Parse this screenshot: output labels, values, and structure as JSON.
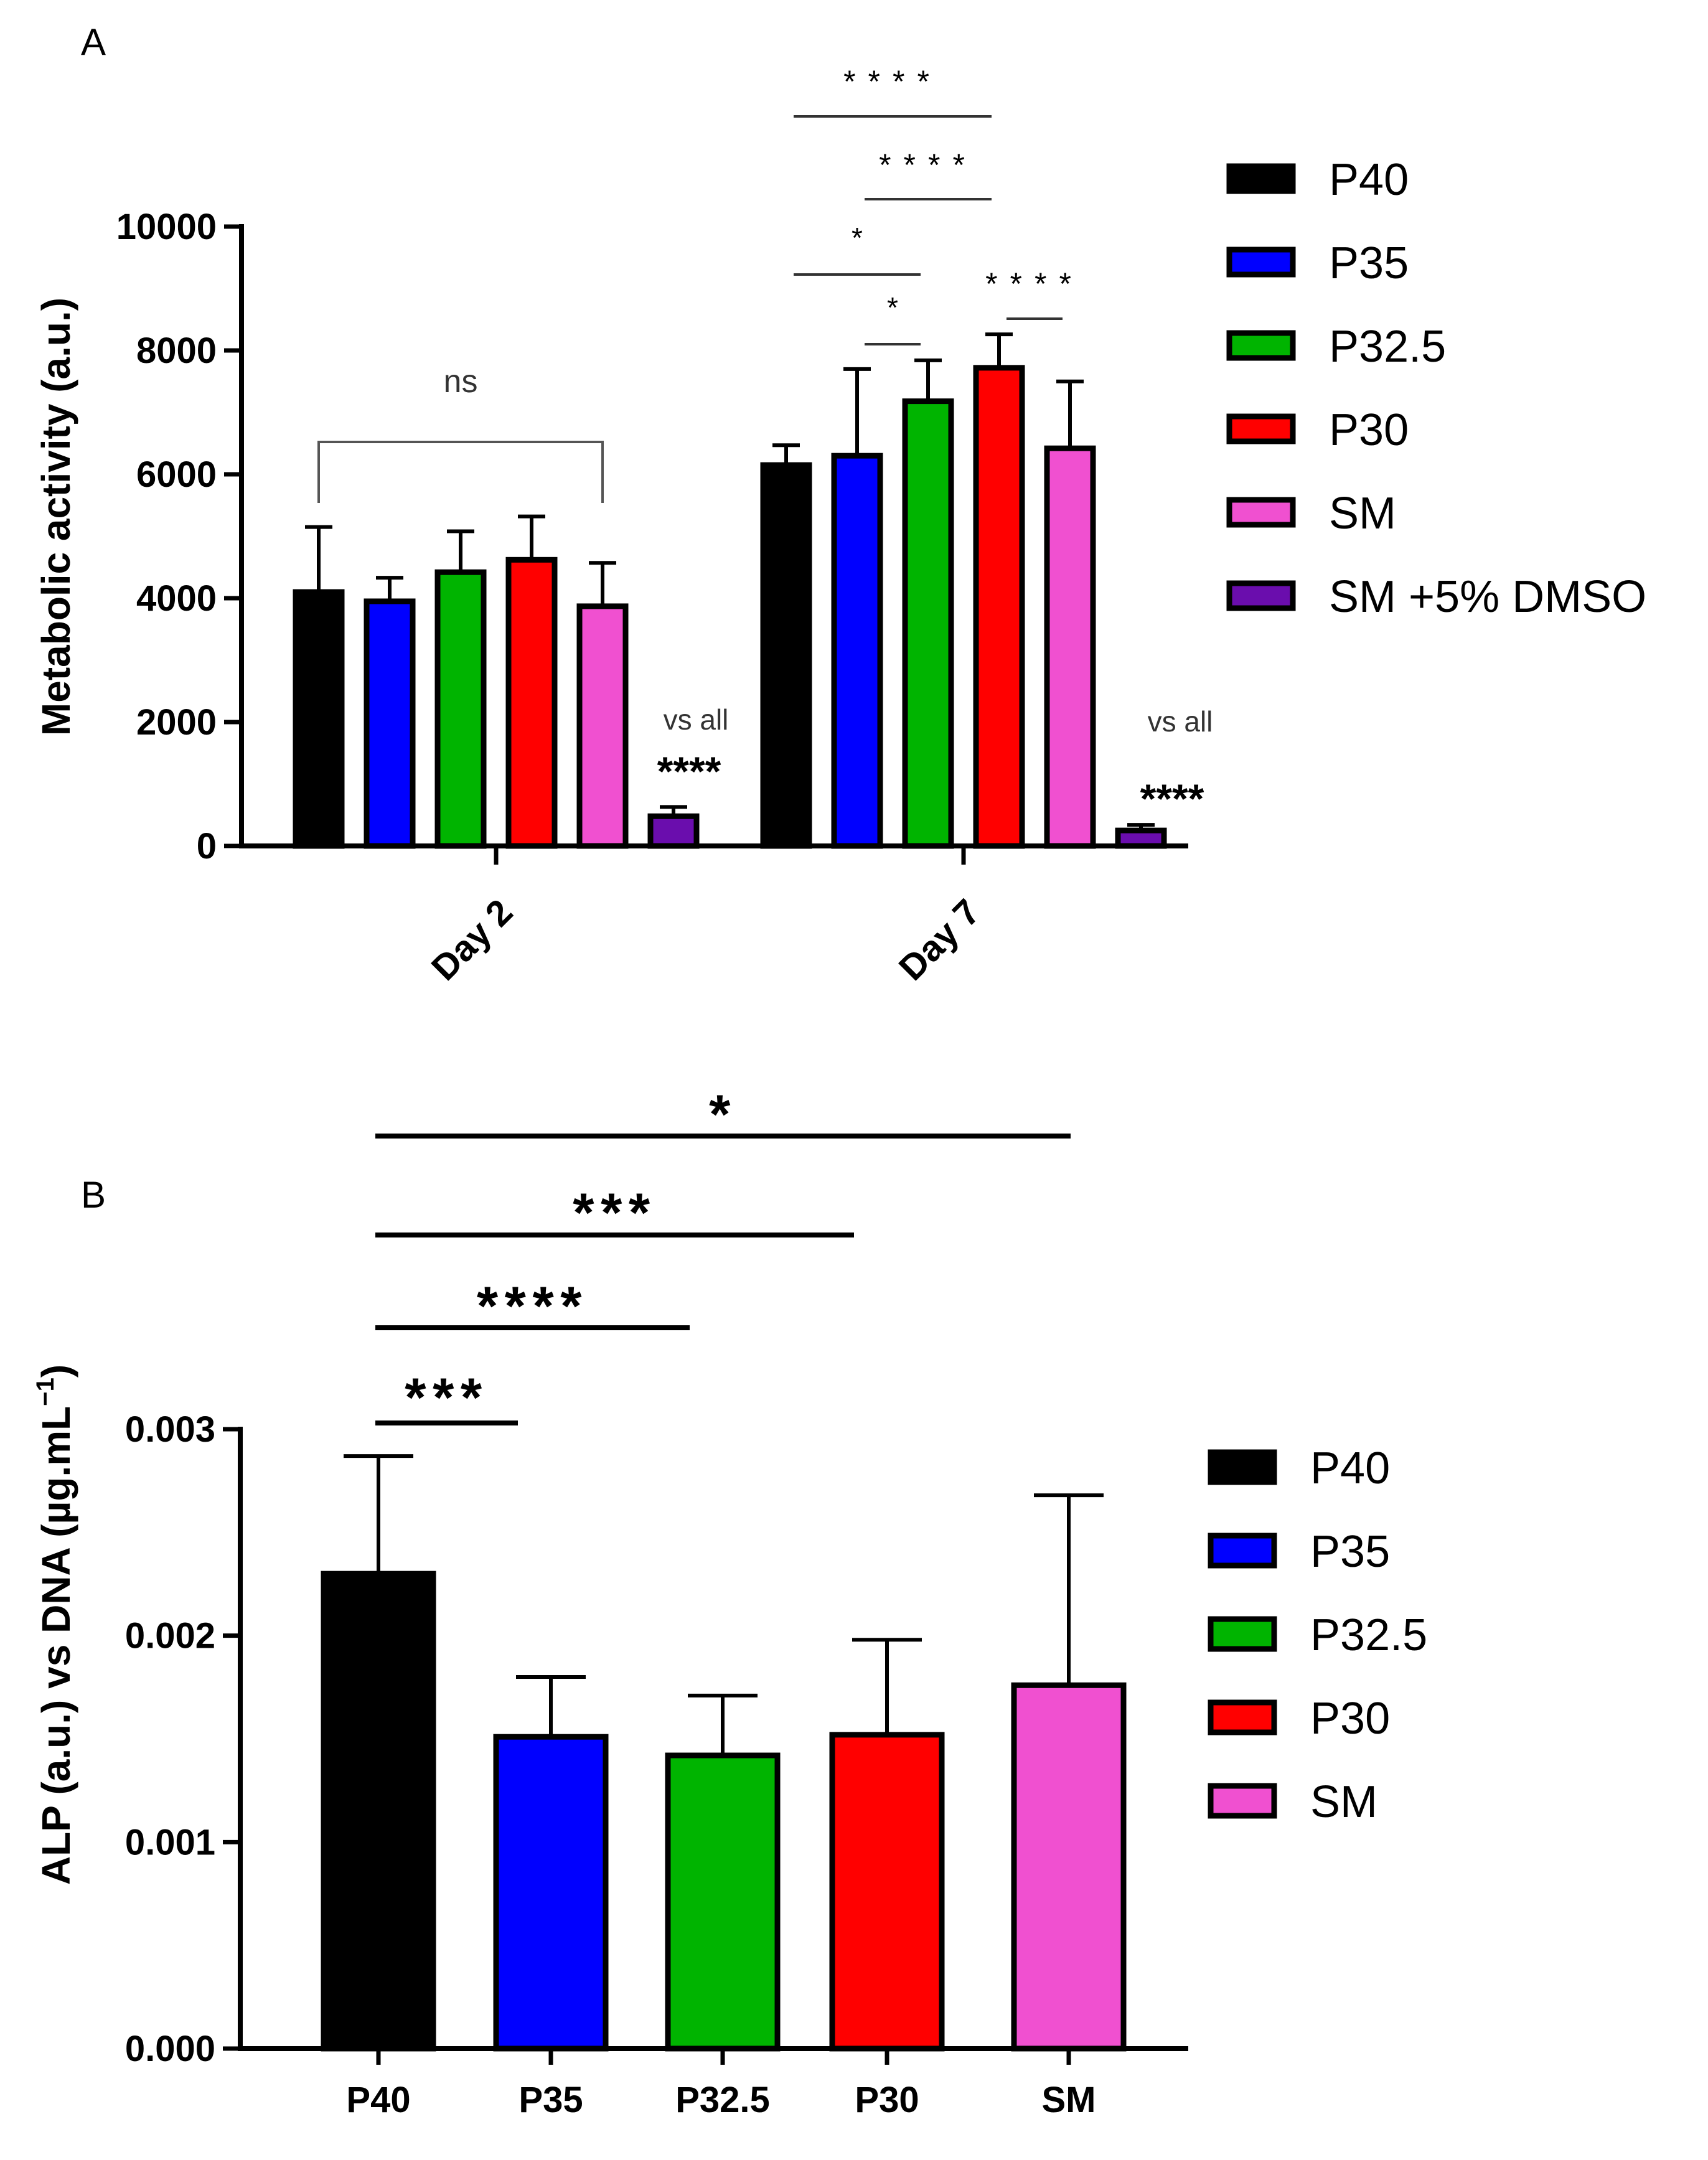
{
  "chart_data": [
    {
      "panel": "A",
      "type": "bar",
      "ylabel": "Metabolic activity (a.u.)",
      "ylim": [
        0,
        10000
      ],
      "yticks": [
        0,
        2000,
        4000,
        6000,
        8000,
        10000
      ],
      "categories": [
        "Day 2",
        "Day 7"
      ],
      "series": [
        {
          "name": "P40",
          "color": "#000000",
          "values": [
            4100,
            6150
          ],
          "errors": [
            1050,
            320
          ]
        },
        {
          "name": "P35",
          "color": "#0000ff",
          "values": [
            3950,
            6300
          ],
          "errors": [
            380,
            1400
          ]
        },
        {
          "name": "P32.5",
          "color": "#00b400",
          "values": [
            4420,
            7180
          ],
          "errors": [
            660,
            660
          ]
        },
        {
          "name": "P30",
          "color": "#ff0000",
          "values": [
            4620,
            7720
          ],
          "errors": [
            700,
            540
          ]
        },
        {
          "name": "SM",
          "color": "#f050d0",
          "values": [
            3870,
            6420
          ],
          "errors": [
            700,
            1080
          ]
        },
        {
          "name": "SM +5% DMSO",
          "color": "#6a0dad",
          "values": [
            480,
            250
          ],
          "errors": [
            150,
            90
          ]
        }
      ],
      "annotations": {
        "day2_bracket": "ns",
        "day2_note": "vs all",
        "day2_dmso_sig": "****",
        "day7_note": "vs all",
        "day7_dmso_sig": "****",
        "day7_comparisons": [
          {
            "label": "****",
            "from": "P40",
            "to": "P30"
          },
          {
            "label": "****",
            "from": "P35",
            "to": "P30"
          },
          {
            "label": "*",
            "from": "P40",
            "to": "P32.5"
          },
          {
            "label": "*",
            "from": "P35",
            "to": "P32.5"
          },
          {
            "label": "****",
            "from": "P30",
            "to": "SM"
          }
        ]
      }
    },
    {
      "panel": "B",
      "type": "bar",
      "ylabel": "ALP (a.u.) vs DNA (µg.mL",
      "ylabel_superscript": "−1",
      "ylabel_close": ")",
      "ylim": [
        0,
        0.003
      ],
      "yticks": [
        0.0,
        0.001,
        0.002,
        0.003
      ],
      "ytick_labels": [
        "0.000",
        "0.001",
        "0.002",
        "0.003"
      ],
      "categories": [
        "P40",
        "P35",
        "P32.5",
        "P30",
        "SM"
      ],
      "series": [
        {
          "name": "P40",
          "color": "#000000",
          "value": 0.0023,
          "error": 0.00057
        },
        {
          "name": "P35",
          "color": "#0000ff",
          "value": 0.00151,
          "error": 0.00029
        },
        {
          "name": "P32.5",
          "color": "#00b400",
          "value": 0.00142,
          "error": 0.00029
        },
        {
          "name": "P30",
          "color": "#ff0000",
          "value": 0.00152,
          "error": 0.00046
        },
        {
          "name": "SM",
          "color": "#f050d0",
          "value": 0.00176,
          "error": 0.00092
        }
      ],
      "comparisons": [
        {
          "label": "***",
          "from": "P40",
          "to": "P35"
        },
        {
          "label": "****",
          "from": "P40",
          "to": "P32.5"
        },
        {
          "label": "***",
          "from": "P40",
          "to": "P30"
        },
        {
          "label": "*",
          "from": "P40",
          "to": "SM"
        }
      ]
    }
  ]
}
